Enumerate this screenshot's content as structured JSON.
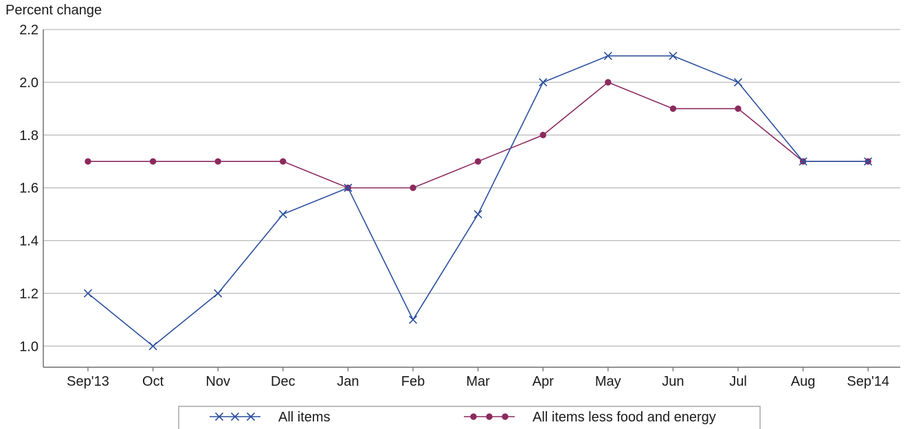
{
  "chart_data": {
    "type": "line",
    "title": "",
    "ylabel": "Percent change",
    "xlabel": "",
    "categories": [
      "Sep'13",
      "Oct",
      "Nov",
      "Dec",
      "Jan",
      "Feb",
      "Mar",
      "Apr",
      "May",
      "Jun",
      "Jul",
      "Aug",
      "Sep'14"
    ],
    "ylim": [
      0.92,
      2.2
    ],
    "yticks": [
      1.0,
      1.2,
      1.4,
      1.6,
      1.8,
      2.0,
      2.2
    ],
    "ytick_labels": [
      "1.0",
      "1.2",
      "1.4",
      "1.6",
      "1.8",
      "2.0",
      "2.2"
    ],
    "grid": "horizontal",
    "legend_position": "bottom",
    "series": [
      {
        "name": "All items",
        "color": "#2b4f9e",
        "marker": "x-mark",
        "values": [
          1.2,
          1.0,
          1.2,
          1.5,
          1.6,
          1.1,
          1.5,
          2.0,
          2.1,
          2.1,
          2.0,
          1.7,
          1.7
        ]
      },
      {
        "name": "All items less food and energy",
        "color": "#8b2a5e",
        "marker": "circle",
        "values": [
          1.7,
          1.7,
          1.7,
          1.7,
          1.6,
          1.6,
          1.7,
          1.8,
          2.0,
          1.9,
          1.9,
          1.7,
          1.7
        ]
      }
    ]
  }
}
